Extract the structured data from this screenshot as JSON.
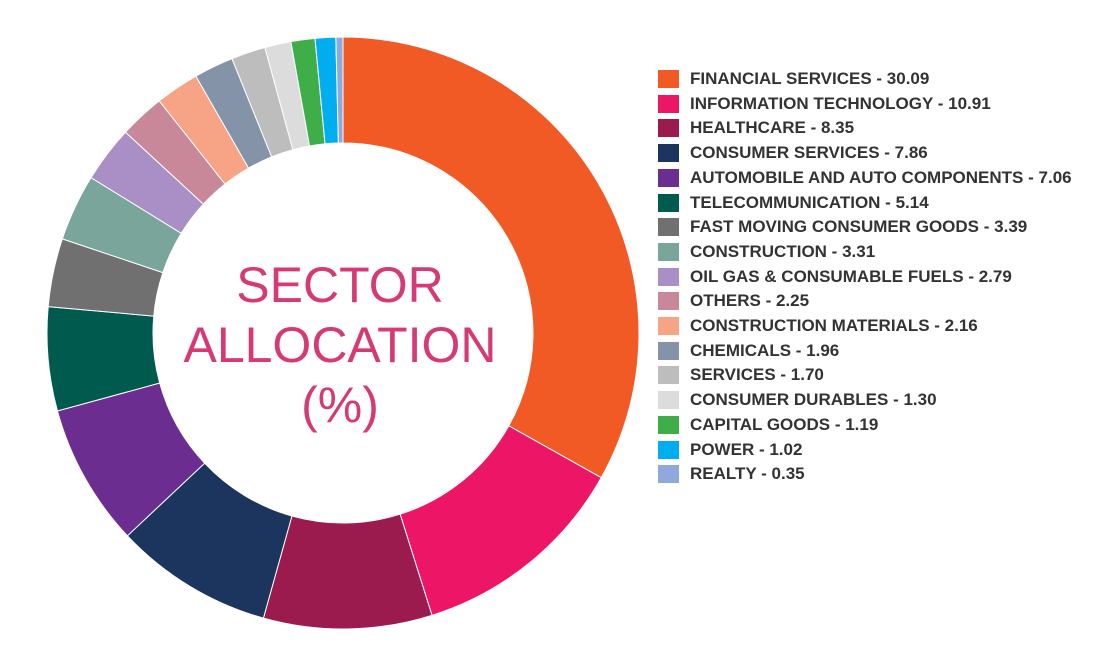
{
  "chart_data": {
    "type": "donut",
    "title": [
      "SECTOR",
      "ALLOCATION",
      "(%)"
    ],
    "label_separator": " - ",
    "categories": [
      "FINANCIAL SERVICES",
      "INFORMATION TECHNOLOGY",
      "HEALTHCARE",
      "CONSUMER SERVICES",
      "AUTOMOBILE AND AUTO COMPONENTS",
      "TELECOMMUNICATION",
      "FAST MOVING CONSUMER GOODS",
      "CONSTRUCTION",
      "OIL GAS & CONSUMABLE FUELS",
      "OTHERS",
      "CONSTRUCTION MATERIALS",
      "CHEMICALS",
      "SERVICES",
      "CONSUMER DURABLES",
      "CAPITAL GOODS",
      "POWER",
      "REALTY"
    ],
    "values": [
      30.09,
      10.91,
      8.35,
      7.86,
      7.06,
      5.14,
      3.39,
      3.31,
      2.79,
      2.25,
      2.16,
      1.96,
      1.7,
      1.3,
      1.19,
      1.02,
      0.35
    ],
    "value_labels": [
      "30.09",
      "10.91",
      "8.35",
      "7.86",
      "7.06",
      "5.14",
      "3.39",
      "3.31",
      "2.79",
      "2.25",
      "2.16",
      "1.96",
      "1.70",
      "1.30",
      "1.19",
      "1.02",
      "0.35"
    ],
    "colors": [
      "#f15a24",
      "#ec1566",
      "#9b1b4e",
      "#1c355e",
      "#6c2d91",
      "#005b4e",
      "#707070",
      "#7aa59a",
      "#a98fc6",
      "#c9879a",
      "#f7a386",
      "#8593a8",
      "#bdbdbd",
      "#dcdcdc",
      "#3fae49",
      "#00aeef",
      "#8fa9dc"
    ],
    "legend": "right"
  }
}
